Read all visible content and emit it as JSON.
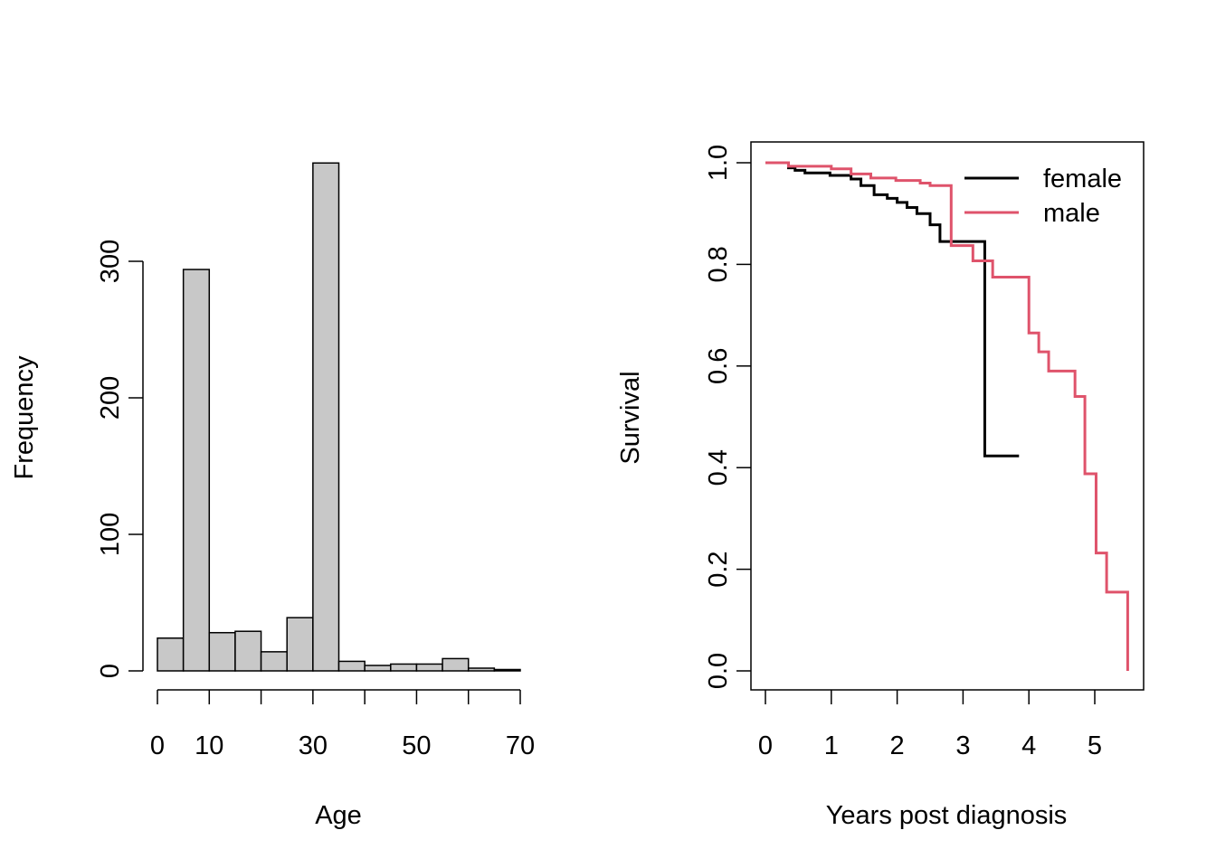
{
  "chart_data": [
    {
      "type": "bar",
      "subtype": "histogram",
      "title": "",
      "xlabel": "Age",
      "ylabel": "Frequency",
      "bin_width": 5,
      "bins": [
        {
          "from": 0,
          "to": 5,
          "count": 24
        },
        {
          "from": 5,
          "to": 10,
          "count": 294
        },
        {
          "from": 10,
          "to": 15,
          "count": 28
        },
        {
          "from": 15,
          "to": 20,
          "count": 29
        },
        {
          "from": 20,
          "to": 25,
          "count": 14
        },
        {
          "from": 25,
          "to": 30,
          "count": 39
        },
        {
          "from": 30,
          "to": 35,
          "count": 372
        },
        {
          "from": 35,
          "to": 40,
          "count": 7
        },
        {
          "from": 40,
          "to": 45,
          "count": 4
        },
        {
          "from": 45,
          "to": 50,
          "count": 5
        },
        {
          "from": 50,
          "to": 55,
          "count": 5
        },
        {
          "from": 55,
          "to": 60,
          "count": 9
        },
        {
          "from": 60,
          "to": 65,
          "count": 2
        },
        {
          "from": 65,
          "to": 70,
          "count": 1
        }
      ],
      "xlim": [
        0,
        70
      ],
      "ylim": [
        0,
        372
      ],
      "x_ticks": [
        0,
        10,
        20,
        30,
        40,
        50,
        60,
        70
      ],
      "x_tick_labels": [
        "0",
        "10",
        "",
        "30",
        "",
        "50",
        "",
        "70"
      ],
      "y_ticks": [
        0,
        100,
        200,
        300
      ],
      "y_tick_labels": [
        "0",
        "100",
        "200",
        "300"
      ],
      "bar_color": "#c8c8c8",
      "edge_color": "#000000"
    },
    {
      "type": "line",
      "subtype": "step (Kaplan-Meier survival curve)",
      "title": "",
      "xlabel": "Years post diagnosis",
      "ylabel": "Survival",
      "xlim": [
        0,
        5.5
      ],
      "ylim": [
        0,
        1
      ],
      "x_ticks": [
        0,
        1,
        2,
        3,
        4,
        5
      ],
      "x_tick_labels": [
        "0",
        "1",
        "2",
        "3",
        "4",
        "5"
      ],
      "y_ticks": [
        0,
        0.2,
        0.4,
        0.6,
        0.8,
        1.0
      ],
      "y_tick_labels": [
        "0.0",
        "0.2",
        "0.4",
        "0.6",
        "0.8",
        "1.0"
      ],
      "legend": {
        "position": "top-right",
        "framed": false
      },
      "series": [
        {
          "name": "female",
          "color": "#000000",
          "steps": [
            [
              0,
              1.0
            ],
            [
              0.35,
              0.99
            ],
            [
              0.45,
              0.985
            ],
            [
              0.6,
              0.98
            ],
            [
              0.98,
              0.975
            ],
            [
              1.3,
              0.968
            ],
            [
              1.45,
              0.955
            ],
            [
              1.65,
              0.937
            ],
            [
              1.85,
              0.93
            ],
            [
              2.0,
              0.922
            ],
            [
              2.15,
              0.912
            ],
            [
              2.3,
              0.9
            ],
            [
              2.5,
              0.878
            ],
            [
              2.65,
              0.845
            ],
            [
              3.0,
              0.845
            ],
            [
              3.33,
              0.423
            ],
            [
              3.85,
              0.423
            ]
          ]
        },
        {
          "name": "male",
          "color": "#df536b",
          "steps": [
            [
              0,
              1.0
            ],
            [
              0.35,
              0.993
            ],
            [
              1.0,
              0.988
            ],
            [
              1.3,
              0.978
            ],
            [
              1.6,
              0.97
            ],
            [
              1.98,
              0.965
            ],
            [
              2.35,
              0.96
            ],
            [
              2.5,
              0.955
            ],
            [
              2.82,
              0.837
            ],
            [
              3.15,
              0.807
            ],
            [
              3.45,
              0.775
            ],
            [
              4.0,
              0.665
            ],
            [
              4.15,
              0.628
            ],
            [
              4.3,
              0.59
            ],
            [
              4.7,
              0.54
            ],
            [
              4.85,
              0.388
            ],
            [
              5.02,
              0.232
            ],
            [
              5.18,
              0.155
            ],
            [
              5.5,
              0.0
            ]
          ]
        }
      ]
    }
  ]
}
